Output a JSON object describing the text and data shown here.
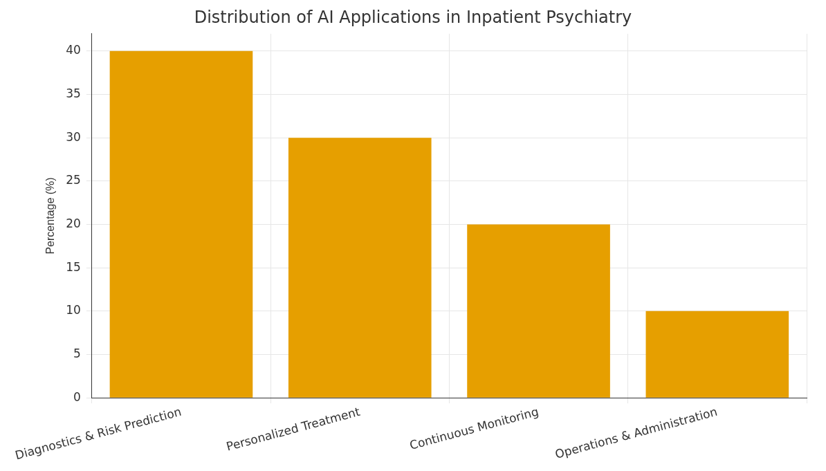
{
  "chart_data": {
    "type": "bar",
    "title": "Distribution of AI Applications in Inpatient Psychiatry",
    "ylabel": "Percentage (%)",
    "categories": [
      "Diagnostics & Risk Prediction",
      "Personalized Treatment",
      "Continuous Monitoring",
      "Operations & Administration"
    ],
    "values": [
      40,
      30,
      20,
      10
    ],
    "color": "#e69f00",
    "ylim": [
      0,
      42
    ],
    "yticks": [
      0,
      5,
      10,
      15,
      20,
      25,
      30,
      35,
      40
    ],
    "grid": true
  }
}
